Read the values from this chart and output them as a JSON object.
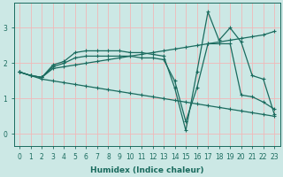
{
  "xlabel": "Humidex (Indice chaleur)",
  "bg_color": "#cce8e5",
  "grid_color": "#f0b8b8",
  "line_color": "#1a6b5e",
  "xlim": [
    -0.5,
    23.5
  ],
  "ylim": [
    -0.35,
    3.7
  ],
  "xticks": [
    0,
    1,
    2,
    3,
    4,
    5,
    6,
    7,
    8,
    9,
    10,
    11,
    12,
    13,
    14,
    15,
    16,
    17,
    18,
    19,
    20,
    21,
    22,
    23
  ],
  "yticks": [
    0,
    1,
    2,
    3
  ],
  "lines": [
    {
      "x": [
        0,
        1,
        2,
        3,
        4,
        5,
        6,
        7,
        8,
        9,
        10,
        11,
        12,
        13,
        14,
        15,
        16,
        17,
        18,
        19,
        20,
        21,
        22,
        23
      ],
      "y": [
        1.75,
        1.65,
        1.6,
        1.95,
        2.05,
        2.3,
        2.35,
        2.35,
        2.35,
        2.35,
        2.3,
        2.3,
        2.25,
        2.2,
        1.3,
        0.1,
        1.75,
        3.45,
        2.65,
        3.0,
        2.6,
        1.65,
        1.55,
        0.55
      ]
    },
    {
      "x": [
        0,
        1,
        2,
        3,
        4,
        5,
        6,
        7,
        8,
        9,
        10,
        11,
        12,
        13,
        14,
        15,
        16,
        17,
        18,
        19,
        20,
        21,
        22,
        23
      ],
      "y": [
        1.75,
        1.65,
        1.6,
        1.9,
        2.0,
        2.15,
        2.2,
        2.2,
        2.2,
        2.2,
        2.2,
        2.15,
        2.15,
        2.1,
        1.5,
        0.35,
        1.3,
        2.55,
        2.55,
        2.55,
        1.1,
        1.05,
        0.9,
        0.7
      ]
    },
    {
      "x": [
        0,
        1,
        2,
        3,
        4,
        5,
        6,
        7,
        8,
        9,
        10,
        11,
        12,
        13,
        14,
        15,
        16,
        17,
        18,
        19,
        20,
        21,
        22,
        23
      ],
      "y": [
        1.75,
        1.65,
        1.6,
        1.85,
        1.9,
        1.95,
        2.0,
        2.05,
        2.1,
        2.15,
        2.2,
        2.25,
        2.3,
        2.35,
        2.4,
        2.45,
        2.5,
        2.55,
        2.6,
        2.65,
        2.7,
        2.75,
        2.8,
        2.9
      ]
    },
    {
      "x": [
        0,
        1,
        2,
        3,
        4,
        5,
        6,
        7,
        8,
        9,
        10,
        11,
        12,
        13,
        14,
        15,
        16,
        17,
        18,
        19,
        20,
        21,
        22,
        23
      ],
      "y": [
        1.75,
        1.65,
        1.55,
        1.5,
        1.45,
        1.4,
        1.35,
        1.3,
        1.25,
        1.2,
        1.15,
        1.1,
        1.05,
        1.0,
        0.95,
        0.9,
        0.85,
        0.8,
        0.75,
        0.7,
        0.65,
        0.6,
        0.55,
        0.5
      ]
    }
  ]
}
